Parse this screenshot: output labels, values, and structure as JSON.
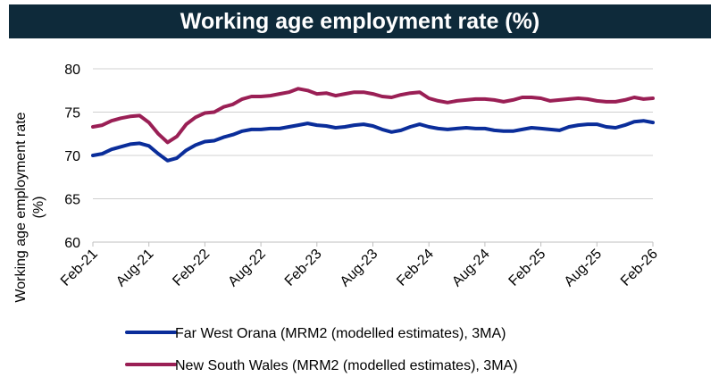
{
  "chart_data": {
    "type": "line",
    "title": "Working age employment rate (%)",
    "ylabel": "Working age employment rate (%)",
    "xlabel": "",
    "ylim": [
      60,
      80
    ],
    "yticks": [
      "60",
      "65",
      "70",
      "75",
      "80"
    ],
    "grid": "horizontal",
    "legend_position": "bottom",
    "x_tick_labels": [
      "Feb-21",
      "Aug-21",
      "Feb-22",
      "Aug-22",
      "Feb-23",
      "Aug-23",
      "Feb-24",
      "Aug-24",
      "Feb-25",
      "Aug-25",
      "Feb-26"
    ],
    "x": [
      "Feb-21",
      "Mar-21",
      "Apr-21",
      "May-21",
      "Jun-21",
      "Jul-21",
      "Aug-21",
      "Sep-21",
      "Oct-21",
      "Nov-21",
      "Dec-21",
      "Jan-22",
      "Feb-22",
      "Mar-22",
      "Apr-22",
      "May-22",
      "Jun-22",
      "Jul-22",
      "Aug-22",
      "Sep-22",
      "Oct-22",
      "Nov-22",
      "Dec-22",
      "Jan-23",
      "Feb-23",
      "Mar-23",
      "Apr-23",
      "May-23",
      "Jun-23",
      "Jul-23",
      "Aug-23",
      "Sep-23",
      "Oct-23",
      "Nov-23",
      "Dec-23",
      "Jan-24",
      "Feb-24",
      "Mar-24",
      "Apr-24",
      "May-24",
      "Jun-24",
      "Jul-24",
      "Aug-24",
      "Sep-24",
      "Oct-24",
      "Nov-24",
      "Dec-24",
      "Jan-25",
      "Feb-25",
      "Mar-25",
      "Apr-25",
      "May-25",
      "Jun-25",
      "Jul-25",
      "Aug-25",
      "Sep-25",
      "Oct-25",
      "Nov-25",
      "Dec-25",
      "Jan-26",
      "Feb-26"
    ],
    "series": [
      {
        "name": "Far West Orana (MRM2 (modelled estimates), 3MA)",
        "color": "#0a2d9a",
        "values": [
          70.0,
          70.2,
          70.7,
          71.0,
          71.3,
          71.4,
          71.1,
          70.2,
          69.4,
          69.7,
          70.6,
          71.2,
          71.6,
          71.7,
          72.1,
          72.4,
          72.8,
          73.0,
          73.0,
          73.1,
          73.1,
          73.3,
          73.5,
          73.7,
          73.5,
          73.4,
          73.2,
          73.3,
          73.5,
          73.6,
          73.4,
          73.0,
          72.7,
          72.9,
          73.3,
          73.6,
          73.3,
          73.1,
          73.0,
          73.1,
          73.2,
          73.1,
          73.1,
          72.9,
          72.8,
          72.8,
          73.0,
          73.2,
          73.1,
          73.0,
          72.9,
          73.3,
          73.5,
          73.6,
          73.6,
          73.3,
          73.2,
          73.5,
          73.9,
          74.0,
          73.8
        ]
      },
      {
        "name": "New South Wales (MRM2 (modelled estimates), 3MA)",
        "color": "#9a1f55",
        "values": [
          73.3,
          73.5,
          74.0,
          74.3,
          74.5,
          74.6,
          73.8,
          72.5,
          71.5,
          72.2,
          73.6,
          74.4,
          74.9,
          75.0,
          75.6,
          75.9,
          76.5,
          76.8,
          76.8,
          76.9,
          77.1,
          77.3,
          77.7,
          77.5,
          77.1,
          77.2,
          76.9,
          77.1,
          77.3,
          77.3,
          77.1,
          76.8,
          76.7,
          77.0,
          77.2,
          77.3,
          76.6,
          76.3,
          76.1,
          76.3,
          76.4,
          76.5,
          76.5,
          76.4,
          76.2,
          76.4,
          76.7,
          76.7,
          76.6,
          76.3,
          76.4,
          76.5,
          76.6,
          76.5,
          76.3,
          76.2,
          76.2,
          76.4,
          76.7,
          76.5,
          76.6
        ]
      }
    ]
  }
}
